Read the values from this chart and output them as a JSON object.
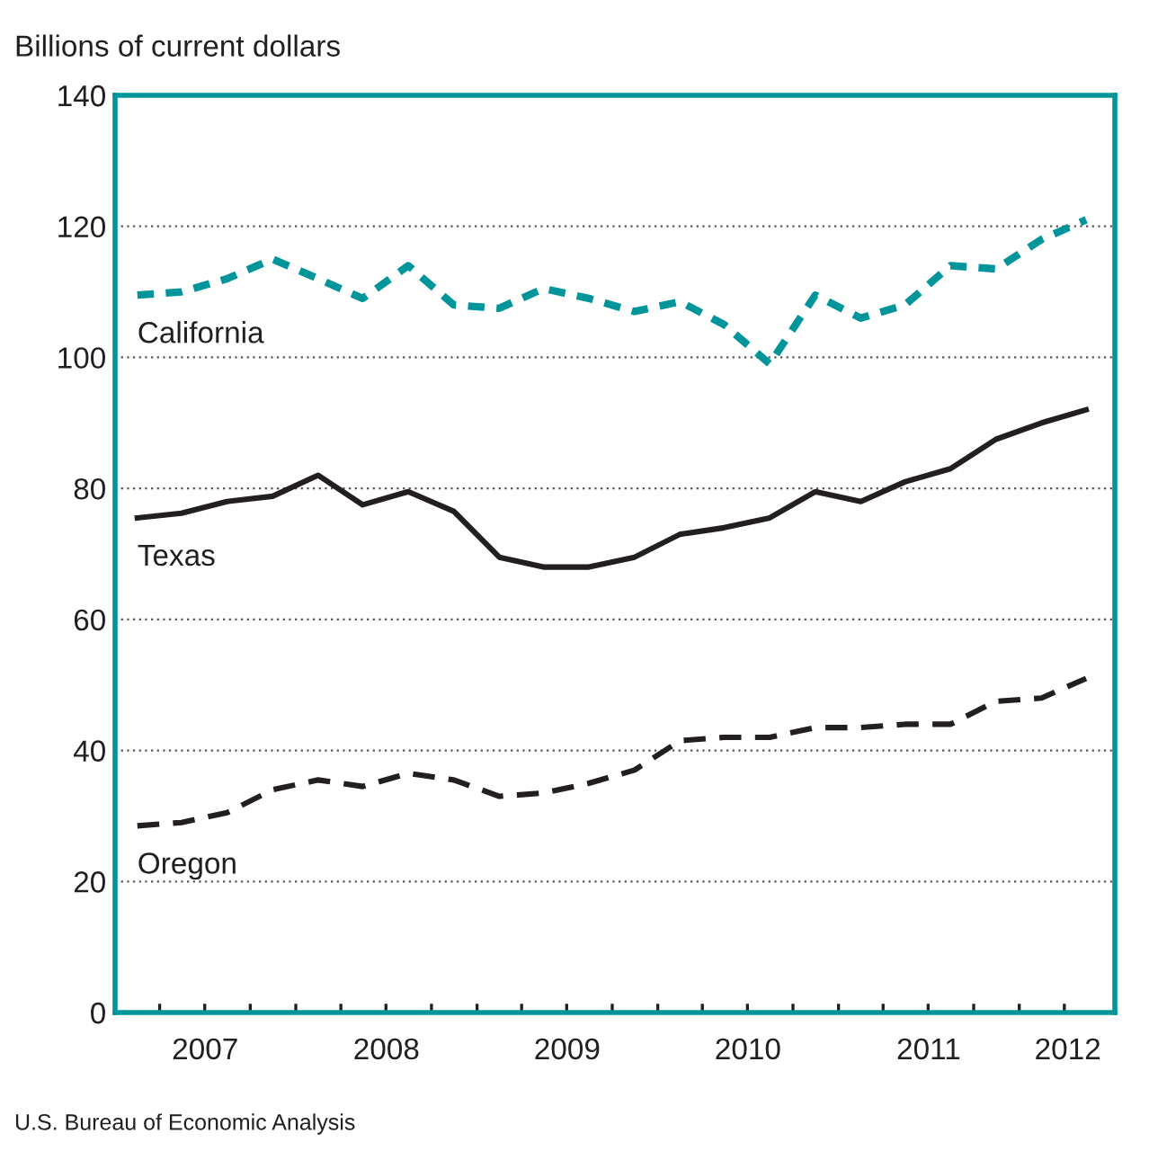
{
  "chart_data": {
    "type": "line",
    "ylabel": "Billions of current dollars",
    "x": [
      "2007-02-15",
      "2007-05-15",
      "2007-08-15",
      "2007-11-15",
      "2008-02-15",
      "2008-05-15",
      "2008-08-15",
      "2008-11-15",
      "2009-02-15",
      "2009-05-15",
      "2009-08-15",
      "2009-11-15",
      "2010-02-15",
      "2010-05-15",
      "2010-08-15",
      "2010-11-15",
      "2011-02-15",
      "2011-05-15",
      "2011-08-15",
      "2011-11-15",
      "2012-02-15",
      "2012-05-15"
    ],
    "series": [
      {
        "name": "California",
        "color": "#00959b",
        "line_style": "dotted",
        "values": [
          109.5,
          110,
          112,
          115,
          112,
          109,
          114,
          108,
          107.5,
          110.5,
          109,
          107,
          108.5,
          105,
          99,
          109.5,
          106,
          108,
          114,
          113.5,
          118,
          121
        ]
      },
      {
        "name": "Texas",
        "color": "#231f20",
        "line_style": "solid",
        "values": [
          75.5,
          76.2,
          78,
          78.8,
          82,
          77.5,
          79.5,
          76.5,
          69.5,
          68,
          68,
          69.5,
          73,
          74,
          75.5,
          79.5,
          78,
          81,
          83,
          87.5,
          90,
          92
        ]
      },
      {
        "name": "Oregon",
        "color": "#231f20",
        "line_style": "dashed",
        "values": [
          28.5,
          29,
          30.5,
          34,
          35.5,
          34.5,
          36.5,
          35.5,
          33,
          33.5,
          35,
          37,
          41.5,
          42,
          42,
          43.5,
          43.5,
          44,
          44,
          47.5,
          48,
          51
        ]
      }
    ],
    "xlim": [
      "2007-01-01",
      "2012-07-12"
    ],
    "xticks": [
      {
        "value": "2007-04-01",
        "label": null
      },
      {
        "value": "2007-07-01",
        "label": null
      },
      {
        "value": "2007-10-01",
        "label": null
      },
      {
        "value": "2008-01-01",
        "label": null
      },
      {
        "value": "2008-04-01",
        "label": null
      },
      {
        "value": "2008-07-01",
        "label": null
      },
      {
        "value": "2008-10-01",
        "label": null
      },
      {
        "value": "2009-01-01",
        "label": null
      },
      {
        "value": "2009-04-01",
        "label": null
      },
      {
        "value": "2009-07-01",
        "label": null
      },
      {
        "value": "2009-10-01",
        "label": null
      },
      {
        "value": "2010-01-01",
        "label": null
      },
      {
        "value": "2010-04-01",
        "label": null
      },
      {
        "value": "2010-07-01",
        "label": null
      },
      {
        "value": "2010-10-01",
        "label": null
      },
      {
        "value": "2011-01-01",
        "label": null
      },
      {
        "value": "2011-04-01",
        "label": null
      },
      {
        "value": "2011-07-01",
        "label": null
      },
      {
        "value": "2011-10-01",
        "label": null
      },
      {
        "value": "2012-01-01",
        "label": null
      },
      {
        "value": "2012-04-01",
        "label": null
      },
      {
        "value": "2007-07-02",
        "label": "2007"
      },
      {
        "value": "2008-07-02",
        "label": "2008"
      },
      {
        "value": "2009-07-02",
        "label": "2009"
      },
      {
        "value": "2010-07-02",
        "label": "2010"
      },
      {
        "value": "2011-07-02",
        "label": "2011"
      },
      {
        "value": "2012-04-08",
        "label": "2012"
      }
    ],
    "ylim": [
      0,
      140
    ],
    "yticks": [
      0,
      20,
      40,
      60,
      80,
      100,
      120,
      140
    ],
    "grid": "y",
    "legend": false,
    "marker": "none",
    "annotations": [
      "U.S. Bureau of Economic Analysis"
    ]
  }
}
